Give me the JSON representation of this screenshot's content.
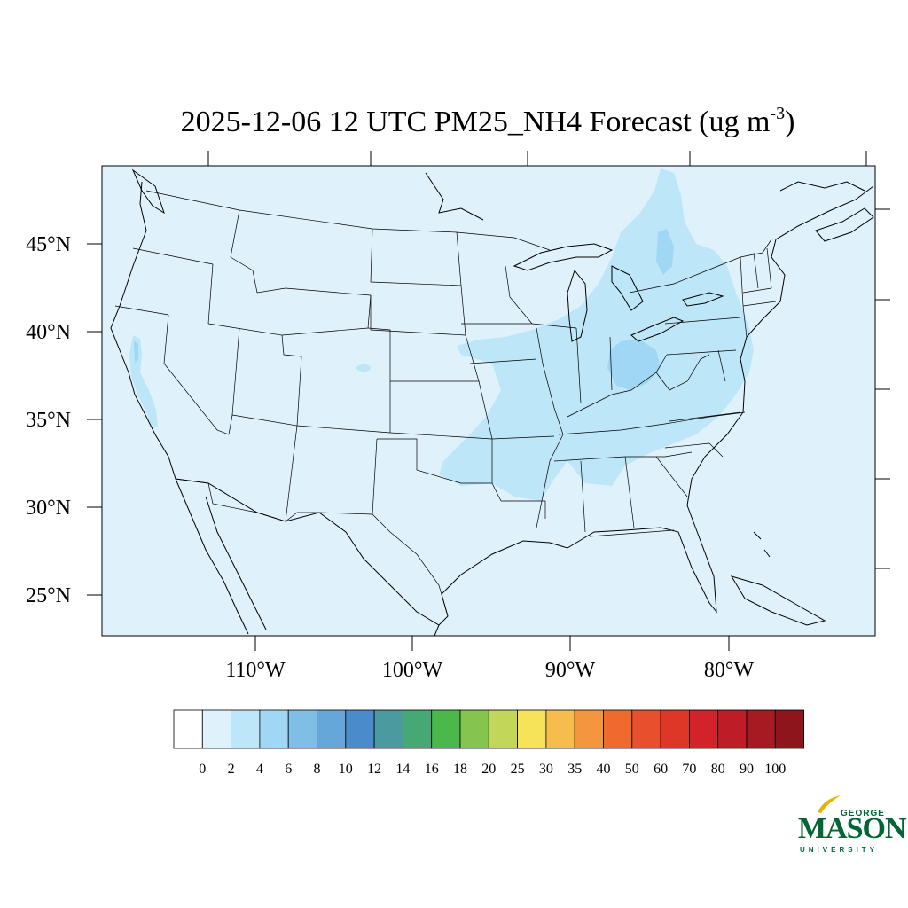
{
  "title": {
    "main": "2025-12-06 12 UTC PM25_NH4 Forecast (ug m",
    "superscript": "-3",
    "close": ")"
  },
  "lat_labels": [
    "45°N",
    "40°N",
    "35°N",
    "30°N",
    "25°N"
  ],
  "lon_labels": [
    "110°W",
    "100°W",
    "90°W",
    "80°W"
  ],
  "colorbar": {
    "labels": [
      "0",
      "2",
      "4",
      "6",
      "8",
      "10",
      "12",
      "14",
      "16",
      "18",
      "20",
      "25",
      "30",
      "35",
      "40",
      "50",
      "60",
      "70",
      "80",
      "90",
      "100"
    ],
    "colors": [
      "#ffffff",
      "#dff2fb",
      "#bde6f8",
      "#9fd7f4",
      "#7fbfe6",
      "#66a7da",
      "#4a8ccb",
      "#4a9aa0",
      "#46a874",
      "#4ab84a",
      "#84c44f",
      "#c2d65a",
      "#f6e35a",
      "#f6bd4c",
      "#f4963d",
      "#f06a2e",
      "#e84f2c",
      "#df3727",
      "#d2222a",
      "#be1c26",
      "#a81a22",
      "#8e151b"
    ]
  },
  "map_colors": {
    "background": "#dff2fb",
    "light_blue": "#bde6f8",
    "mid_blue": "#9fd7f4",
    "border": "#000000"
  },
  "logo": {
    "top_line": "GEORGE",
    "name": "MASON",
    "bottom_line": "UNIVERSITY"
  }
}
